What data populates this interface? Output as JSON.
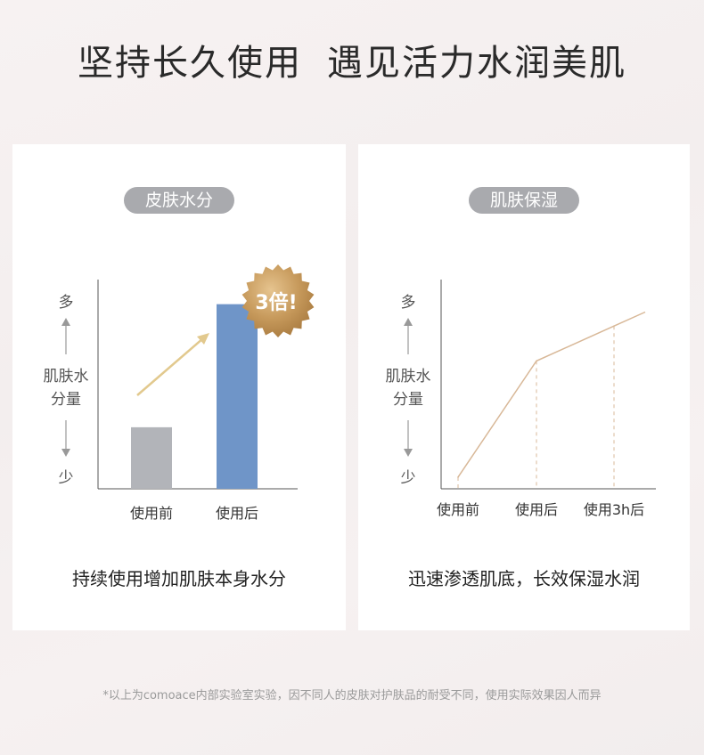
{
  "headline": {
    "part1": "坚持长久使用",
    "part2": "遇见活力水润美肌"
  },
  "chart_data": [
    {
      "type": "bar",
      "title": "皮肤水分",
      "categories": [
        "使用前",
        "使用后"
      ],
      "values": [
        1,
        3
      ],
      "ylim": [
        0,
        3.4
      ],
      "ylabel": {
        "top": "多",
        "middle": [
          "肌肤水",
          "分量"
        ],
        "bottom": "少"
      },
      "colors": [
        "#b2b4b9",
        "#6f95c8"
      ],
      "annotation": "3倍!",
      "caption": "持续使用增加肌肤本身水分"
    },
    {
      "type": "line",
      "title": "肌肤保湿",
      "categories": [
        "使用前",
        "使用后",
        "使用3h后"
      ],
      "series": [
        {
          "values": [
            0.5,
            5.5,
            7.0
          ]
        }
      ],
      "ylim": [
        0,
        9
      ],
      "ylabel": {
        "top": "多",
        "middle": [
          "肌肤水",
          "分量"
        ],
        "bottom": "少"
      },
      "colors": [
        "#d8b898"
      ],
      "caption": "迅速渗透肌底，长效保湿水润"
    }
  ],
  "footnote": "*以上为comoace内部实验室实验，因不同人的皮肤对护肤品的耐受不同，使用实际效果因人而异"
}
